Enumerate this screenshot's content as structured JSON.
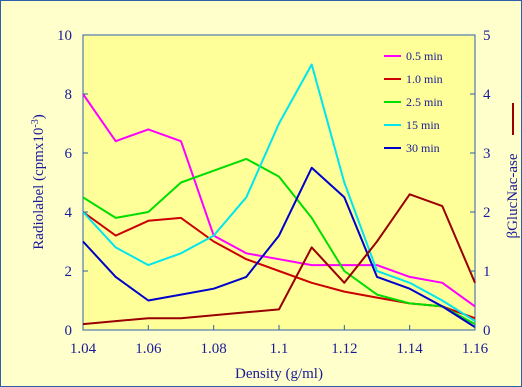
{
  "chart_data": {
    "type": "line",
    "xlabel": "Density (g/ml)",
    "ylabel": "Radiolabel (cpmx10",
    "ylabel_sup": "-3",
    "ylabel_end": ")",
    "y2label": "βGlucNac-ase",
    "xlim": [
      1.04,
      1.16
    ],
    "ylim": [
      0,
      10
    ],
    "y2lim": [
      0,
      5
    ],
    "x_ticks": [
      "1.04",
      "1.06",
      "1.08",
      "1.1",
      "1.12",
      "1.14",
      "1.16"
    ],
    "x_tick_values": [
      1.04,
      1.06,
      1.08,
      1.1,
      1.12,
      1.14,
      1.16
    ],
    "y_ticks": [
      "0",
      "2",
      "4",
      "6",
      "8",
      "10"
    ],
    "y_tick_values": [
      0,
      2,
      4,
      6,
      8,
      10
    ],
    "y2_ticks": [
      "0",
      "1",
      "2",
      "3",
      "4",
      "5"
    ],
    "y2_tick_values": [
      0,
      1,
      2,
      3,
      4,
      5
    ],
    "grid": false,
    "legend_position": "top-right",
    "x": [
      1.04,
      1.05,
      1.06,
      1.07,
      1.08,
      1.09,
      1.1,
      1.11,
      1.12,
      1.13,
      1.14,
      1.15,
      1.16
    ],
    "series": [
      {
        "name": "0.5 min",
        "color": "#FF00FF",
        "axis": "left",
        "values": [
          8.0,
          6.4,
          6.8,
          6.4,
          3.2,
          2.6,
          2.4,
          2.2,
          2.2,
          2.2,
          1.8,
          1.6,
          0.8
        ]
      },
      {
        "name": "1.0 min",
        "color": "#CC0000",
        "axis": "left",
        "values": [
          4.0,
          3.2,
          3.7,
          3.8,
          3.0,
          2.4,
          2.0,
          1.6,
          1.3,
          1.1,
          0.9,
          0.8,
          0.4
        ]
      },
      {
        "name": "2.5 min",
        "color": "#00DD00",
        "axis": "left",
        "values": [
          4.5,
          3.8,
          4.0,
          5.0,
          5.4,
          5.8,
          5.2,
          3.8,
          2.0,
          1.2,
          0.9,
          0.8,
          0.2
        ]
      },
      {
        "name": "15 min",
        "color": "#00E5EE",
        "axis": "left",
        "values": [
          4.0,
          2.8,
          2.2,
          2.6,
          3.2,
          4.5,
          7.0,
          9.0,
          5.0,
          2.0,
          1.6,
          1.0,
          0.3
        ]
      },
      {
        "name": "30 min",
        "color": "#0000CC",
        "axis": "left",
        "values": [
          3.0,
          1.8,
          1.0,
          1.2,
          1.4,
          1.8,
          3.2,
          5.5,
          4.5,
          1.8,
          1.4,
          0.8,
          0.1
        ]
      },
      {
        "name": "",
        "color": "#990000",
        "axis": "right",
        "values": [
          0.1,
          0.15,
          0.2,
          0.2,
          0.25,
          0.3,
          0.35,
          1.4,
          0.8,
          1.5,
          2.3,
          2.1,
          0.8
        ]
      }
    ]
  }
}
